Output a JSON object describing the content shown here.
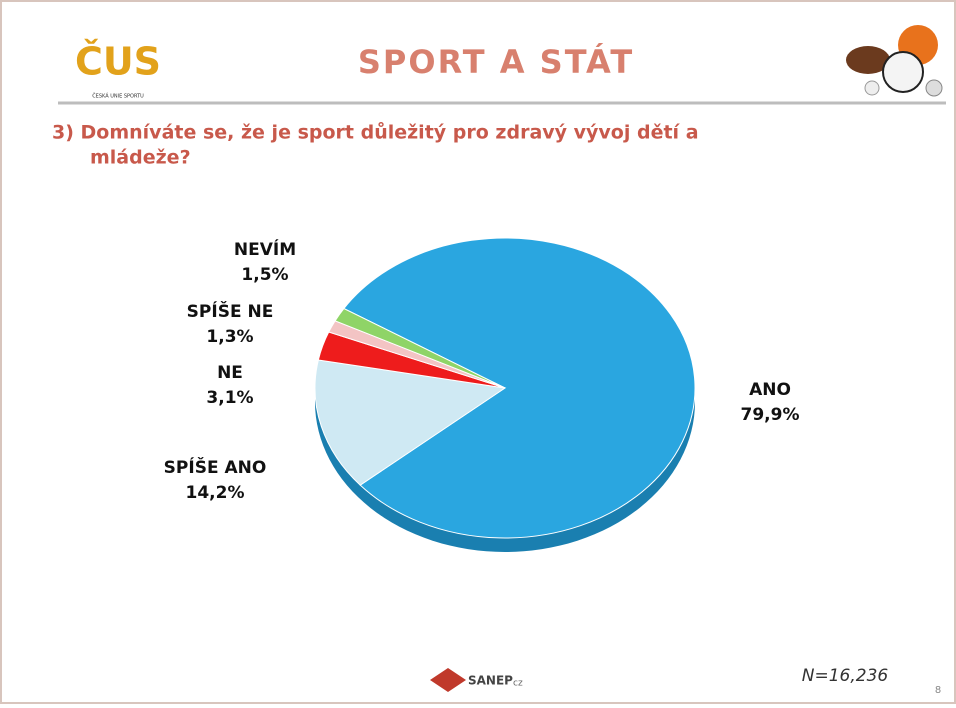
{
  "header": {
    "logo_text": "ČUS",
    "logo_caption": "ČESKÁ UNIE SPORTU",
    "title": "SPORT A STÁT"
  },
  "question": [
    "3) Domníváte se, že je sport důležitý pro zdravý vývoj dětí a",
    "mládeže?"
  ],
  "chart_data": {
    "type": "pie",
    "categories": [
      "ANO",
      "SPÍŠE ANO",
      "NE",
      "SPÍŠE NE",
      "NEVÍM"
    ],
    "values": [
      79.9,
      14.2,
      3.1,
      1.3,
      1.5
    ],
    "value_labels": [
      "79,9%",
      "14,2%",
      "3,1%",
      "1,3%",
      "1,5%"
    ],
    "colors": [
      "#2aa6e0",
      "#cfe9f3",
      "#ee1c1c",
      "#f3c4c4",
      "#8fd467"
    ]
  },
  "footer": {
    "brand": "SANEP",
    "brand_suffix": "cz",
    "sample": "N=16,236",
    "page": "8"
  }
}
